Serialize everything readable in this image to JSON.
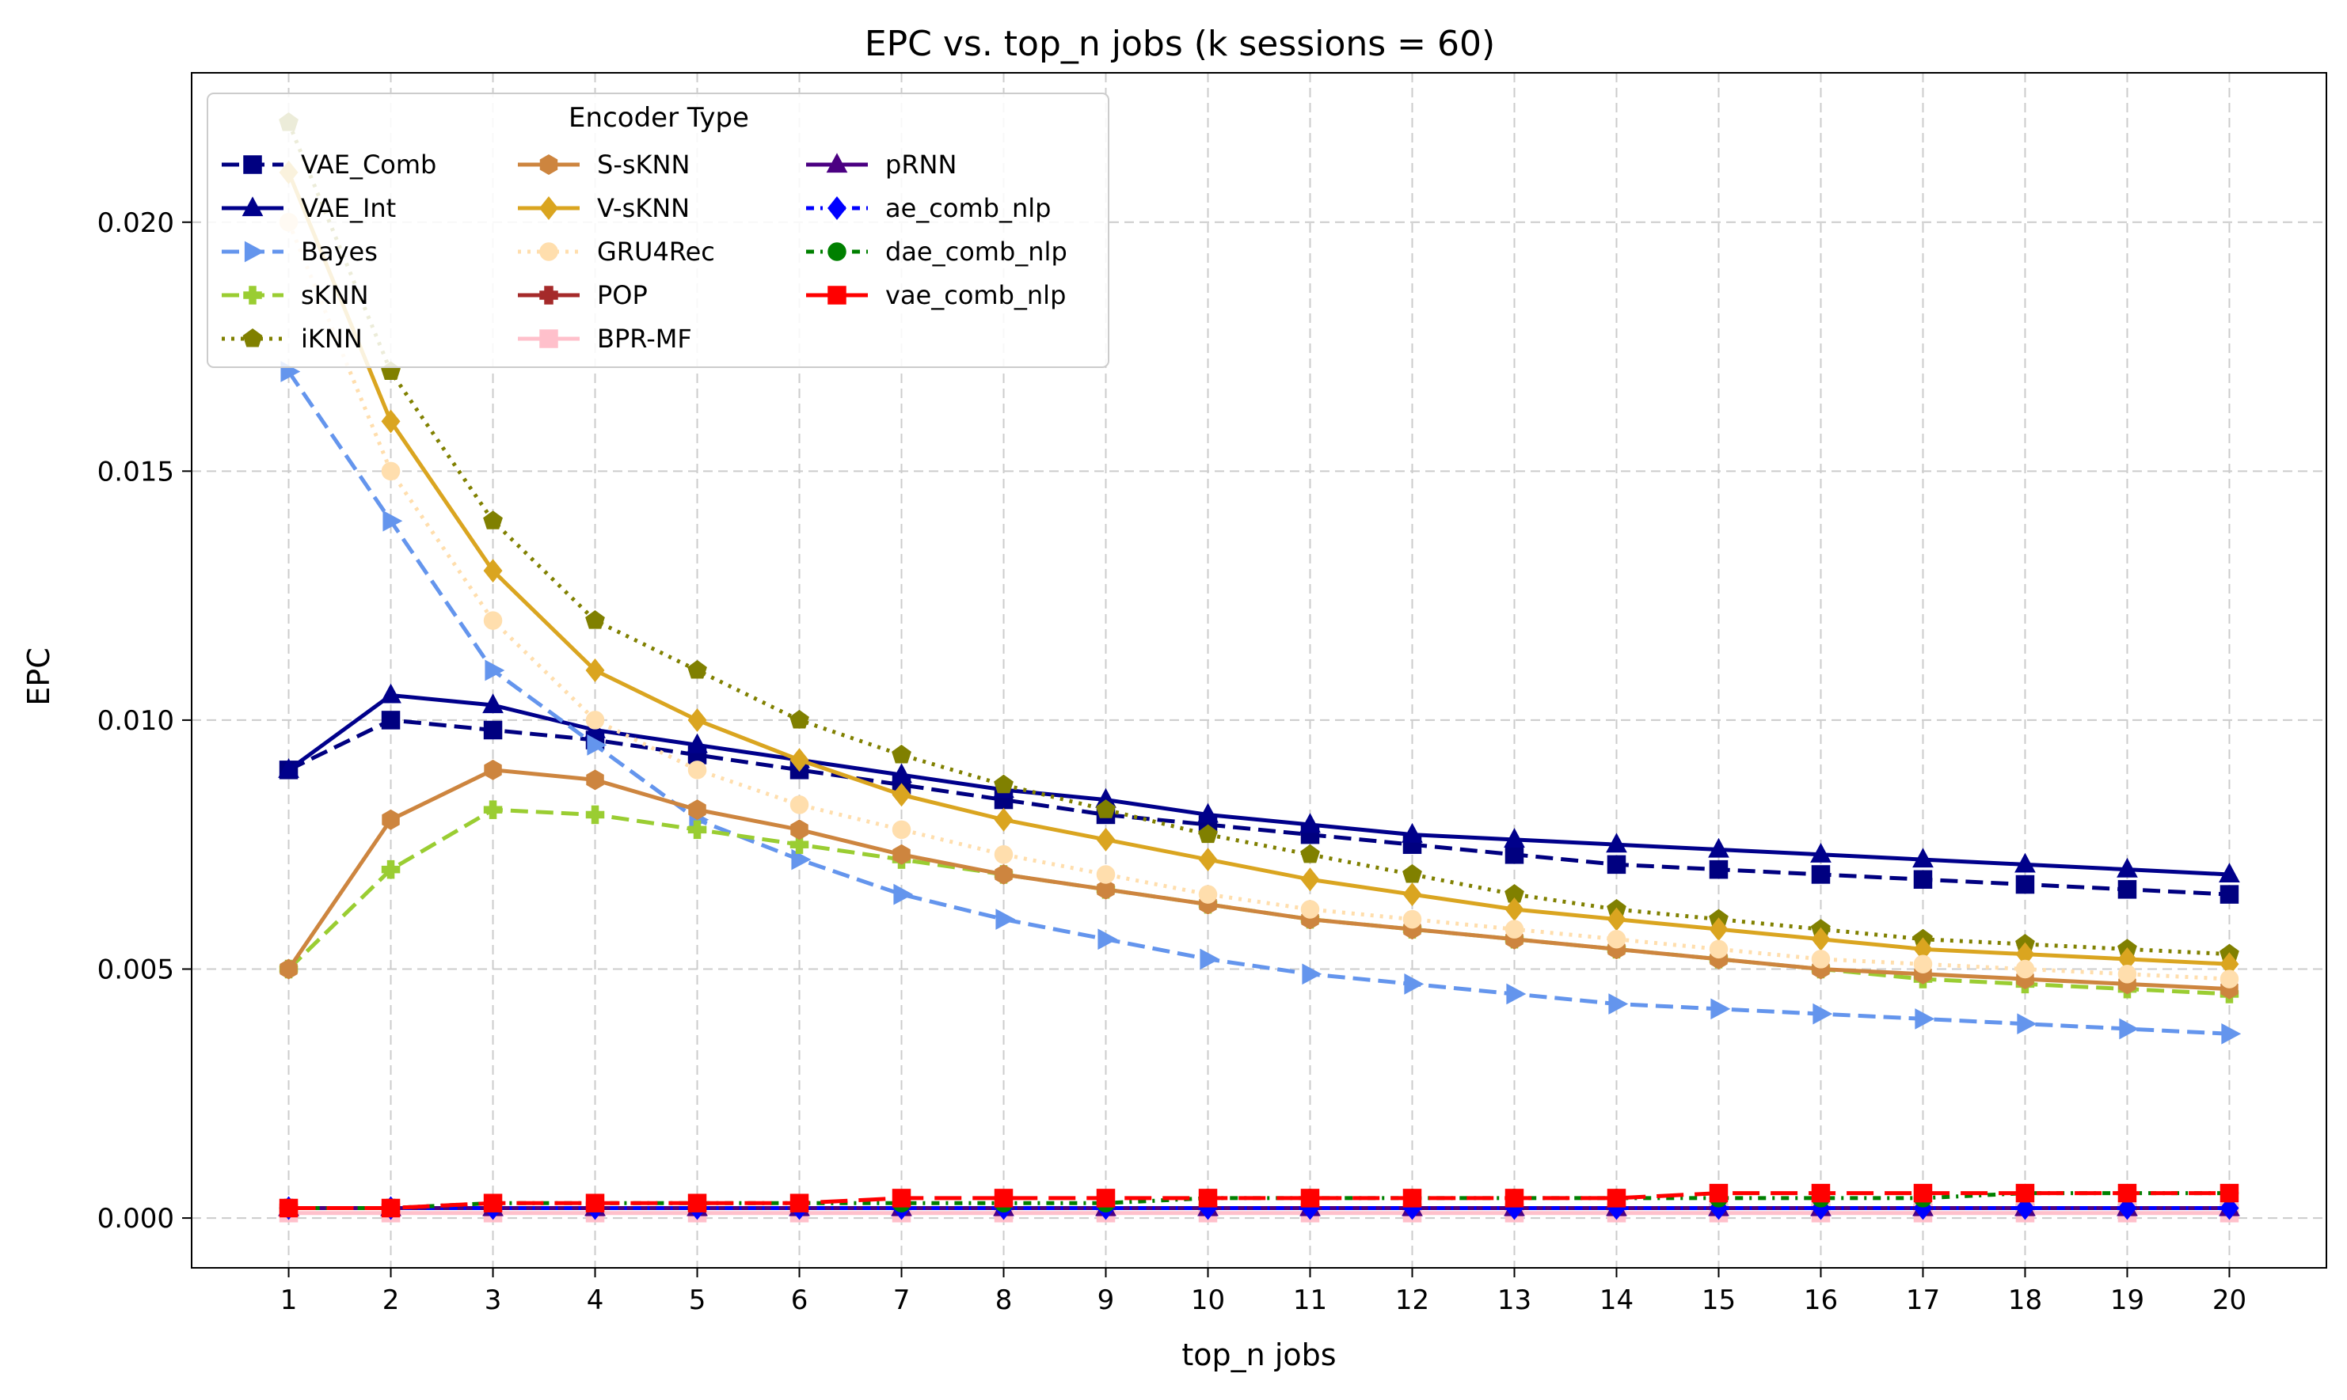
{
  "chart_data": {
    "type": "line",
    "title": "EPC vs. top_n jobs (k sessions = 60)",
    "xlabel": "top_n jobs",
    "ylabel": "EPC",
    "x": [
      1,
      2,
      3,
      4,
      5,
      6,
      7,
      8,
      9,
      10,
      11,
      12,
      13,
      14,
      15,
      16,
      17,
      18,
      19,
      20
    ],
    "xlim": [
      0.05,
      20.95
    ],
    "ylim": [
      -0.001,
      0.023
    ],
    "yticks": [
      0.0,
      0.005,
      0.01,
      0.015,
      0.02
    ],
    "ytick_labels": [
      "0.000",
      "0.005",
      "0.010",
      "0.015",
      "0.020"
    ],
    "xtick_labels": [
      "1",
      "2",
      "3",
      "4",
      "5",
      "6",
      "7",
      "8",
      "9",
      "10",
      "11",
      "12",
      "13",
      "14",
      "15",
      "16",
      "17",
      "18",
      "19",
      "20"
    ],
    "grid": true,
    "legend": {
      "title": "Encoder Type",
      "placement": "top-left",
      "columns": 3
    },
    "series": [
      {
        "name": "VAE_Comb",
        "color": "#000080",
        "dash": "dashed",
        "marker": "square",
        "values": [
          0.009,
          0.01,
          0.0098,
          0.0096,
          0.0093,
          0.009,
          0.0087,
          0.0084,
          0.0081,
          0.0079,
          0.0077,
          0.0075,
          0.0073,
          0.0071,
          0.007,
          0.0069,
          0.0068,
          0.0067,
          0.0066,
          0.0065
        ]
      },
      {
        "name": "VAE_Int",
        "color": "#00008b",
        "dash": "solid",
        "marker": "triangle-up",
        "values": [
          0.009,
          0.0105,
          0.0103,
          0.0098,
          0.0095,
          0.0092,
          0.0089,
          0.0086,
          0.0084,
          0.0081,
          0.0079,
          0.0077,
          0.0076,
          0.0075,
          0.0074,
          0.0073,
          0.0072,
          0.0071,
          0.007,
          0.0069
        ]
      },
      {
        "name": "Bayes",
        "color": "#6495ed",
        "dash": "dashed",
        "marker": "triangle-right",
        "values": [
          0.017,
          0.014,
          0.011,
          0.0095,
          0.008,
          0.0072,
          0.0065,
          0.006,
          0.0056,
          0.0052,
          0.0049,
          0.0047,
          0.0045,
          0.0043,
          0.0042,
          0.0041,
          0.004,
          0.0039,
          0.0038,
          0.0037
        ]
      },
      {
        "name": "sKNN",
        "color": "#9acd32",
        "dash": "dashed",
        "marker": "plus",
        "values": [
          0.005,
          0.007,
          0.0082,
          0.0081,
          0.0078,
          0.0075,
          0.0072,
          0.0069,
          0.0066,
          0.0063,
          0.006,
          0.0058,
          0.0056,
          0.0054,
          0.0052,
          0.005,
          0.0048,
          0.0047,
          0.0046,
          0.0045
        ]
      },
      {
        "name": "iKNN",
        "color": "#808000",
        "dash": "dotted",
        "marker": "pentagon",
        "values": [
          0.022,
          0.017,
          0.014,
          0.012,
          0.011,
          0.01,
          0.0093,
          0.0087,
          0.0082,
          0.0077,
          0.0073,
          0.0069,
          0.0065,
          0.0062,
          0.006,
          0.0058,
          0.0056,
          0.0055,
          0.0054,
          0.0053
        ]
      },
      {
        "name": "S-sKNN",
        "color": "#cd853f",
        "dash": "solid",
        "marker": "hexagon",
        "values": [
          0.005,
          0.008,
          0.009,
          0.0088,
          0.0082,
          0.0078,
          0.0073,
          0.0069,
          0.0066,
          0.0063,
          0.006,
          0.0058,
          0.0056,
          0.0054,
          0.0052,
          0.005,
          0.0049,
          0.0048,
          0.0047,
          0.0046
        ]
      },
      {
        "name": "V-sKNN",
        "color": "#daa520",
        "dash": "solid",
        "marker": "diamond",
        "values": [
          0.021,
          0.016,
          0.013,
          0.011,
          0.01,
          0.0092,
          0.0085,
          0.008,
          0.0076,
          0.0072,
          0.0068,
          0.0065,
          0.0062,
          0.006,
          0.0058,
          0.0056,
          0.0054,
          0.0053,
          0.0052,
          0.0051
        ]
      },
      {
        "name": "GRU4Rec",
        "color": "#ffdead",
        "dash": "dotted",
        "marker": "circle",
        "values": [
          0.02,
          0.015,
          0.012,
          0.01,
          0.009,
          0.0083,
          0.0078,
          0.0073,
          0.0069,
          0.0065,
          0.0062,
          0.006,
          0.0058,
          0.0056,
          0.0054,
          0.0052,
          0.0051,
          0.005,
          0.0049,
          0.0048
        ]
      },
      {
        "name": "POP",
        "color": "#a52a2a",
        "dash": "solid",
        "marker": "plus-filled",
        "values": [
          0.0002,
          0.0002,
          0.0002,
          0.0002,
          0.0002,
          0.0002,
          0.0002,
          0.0002,
          0.0002,
          0.0002,
          0.0002,
          0.0002,
          0.0002,
          0.0002,
          0.0002,
          0.0002,
          0.0002,
          0.0002,
          0.0002,
          0.0002
        ]
      },
      {
        "name": "BPR-MF",
        "color": "#ffc0cb",
        "dash": "solid",
        "marker": "square",
        "values": [
          0.0001,
          0.0001,
          0.0001,
          0.0001,
          0.0001,
          0.0001,
          0.0001,
          0.0001,
          0.0001,
          0.0001,
          0.0001,
          0.0001,
          0.0001,
          0.0001,
          0.0001,
          0.0001,
          0.0001,
          0.0001,
          0.0001,
          0.0001
        ]
      },
      {
        "name": "pRNN",
        "color": "#4b0082",
        "dash": "solid",
        "marker": "triangle-up",
        "values": [
          0.0002,
          0.0002,
          0.0002,
          0.0002,
          0.0002,
          0.0002,
          0.0002,
          0.0002,
          0.0002,
          0.0002,
          0.0002,
          0.0002,
          0.0002,
          0.0002,
          0.0002,
          0.0002,
          0.0002,
          0.0002,
          0.0002,
          0.0002
        ]
      },
      {
        "name": "ae_comb_nlp",
        "color": "#0000ff",
        "dash": "dashdot",
        "marker": "diamond",
        "values": [
          0.0002,
          0.0002,
          0.0002,
          0.0002,
          0.0002,
          0.0002,
          0.0002,
          0.0002,
          0.0002,
          0.0002,
          0.0002,
          0.0002,
          0.0002,
          0.0002,
          0.0002,
          0.0002,
          0.0002,
          0.0002,
          0.0002,
          0.0002
        ]
      },
      {
        "name": "dae_comb_nlp",
        "color": "#008000",
        "dash": "dashdot",
        "marker": "circle",
        "values": [
          0.0002,
          0.0002,
          0.0003,
          0.0003,
          0.0003,
          0.0003,
          0.0003,
          0.0003,
          0.0003,
          0.0004,
          0.0004,
          0.0004,
          0.0004,
          0.0004,
          0.0004,
          0.0004,
          0.0004,
          0.0005,
          0.0005,
          0.0005
        ]
      },
      {
        "name": "vae_comb_nlp",
        "color": "#ff0000",
        "dash": "longdash",
        "marker": "square",
        "values": [
          0.0002,
          0.0002,
          0.0003,
          0.0003,
          0.0003,
          0.0003,
          0.0004,
          0.0004,
          0.0004,
          0.0004,
          0.0004,
          0.0004,
          0.0004,
          0.0004,
          0.0005,
          0.0005,
          0.0005,
          0.0005,
          0.0005,
          0.0005
        ]
      }
    ]
  }
}
